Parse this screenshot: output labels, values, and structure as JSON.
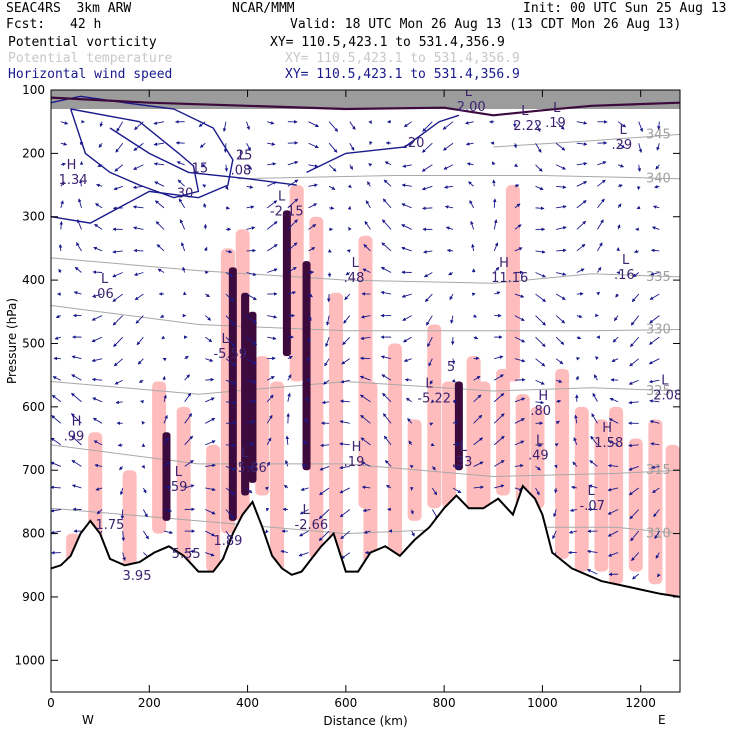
{
  "header": {
    "model": "SEAC4RS  3km ARW",
    "center": "NCAR/MMM",
    "init": "Init: 00 UTC Sun 25 Aug 13",
    "fcst_label": "Fcst:",
    "fcst_value": "42 h",
    "valid": "Valid: 18 UTC Mon 26 Aug 13 (13 CDT Mon 26 Aug 13)",
    "fields": [
      {
        "name": "Potential vorticity",
        "xy": "XY= 110.5,423.1 to 531.4,356.9",
        "color": "#000000"
      },
      {
        "name": "Potential temperature",
        "xy": "XY= 110.5,423.1 to 531.4,356.9",
        "color": "#c8c8c8"
      },
      {
        "name": "Horizontal wind speed",
        "xy": "XY= 110.5,423.1 to 531.4,356.9",
        "color": "#1a1a8c"
      }
    ]
  },
  "colors": {
    "pv_fill": "#ffbcbc",
    "pv_high": "#3c0a3c",
    "wind": "#1a1a8c",
    "theta": "#a8a8a8",
    "terrain": "#000000",
    "label_purple": "#3c2370"
  },
  "chart_data": {
    "type": "cross-section",
    "xlabel": "Distance (km)",
    "ylabel": "Pressure (hPa)",
    "x_ticks": [
      0,
      200,
      400,
      600,
      800,
      1000,
      1200
    ],
    "x_tick_labels": [
      "0",
      "200",
      "400",
      "600",
      "800",
      "1000",
      "1200"
    ],
    "xlim": [
      0,
      1280
    ],
    "y_ticks": [
      100,
      200,
      300,
      400,
      500,
      600,
      700,
      800,
      900,
      1000
    ],
    "y_tick_labels": [
      "100",
      "200",
      "300",
      "400",
      "500",
      "600",
      "700",
      "800",
      "900",
      "1000"
    ],
    "ylim": [
      1050,
      100
    ],
    "left_end": "W",
    "right_end": "E",
    "terrain": [
      [
        0,
        855
      ],
      [
        20,
        850
      ],
      [
        40,
        835
      ],
      [
        60,
        800
      ],
      [
        80,
        780
      ],
      [
        100,
        800
      ],
      [
        120,
        840
      ],
      [
        150,
        850
      ],
      [
        180,
        845
      ],
      [
        210,
        830
      ],
      [
        240,
        820
      ],
      [
        270,
        835
      ],
      [
        300,
        860
      ],
      [
        330,
        860
      ],
      [
        350,
        840
      ],
      [
        370,
        800
      ],
      [
        390,
        770
      ],
      [
        410,
        750
      ],
      [
        430,
        790
      ],
      [
        450,
        835
      ],
      [
        470,
        855
      ],
      [
        490,
        865
      ],
      [
        510,
        860
      ],
      [
        530,
        840
      ],
      [
        550,
        820
      ],
      [
        575,
        800
      ],
      [
        600,
        860
      ],
      [
        625,
        860
      ],
      [
        650,
        830
      ],
      [
        680,
        820
      ],
      [
        710,
        835
      ],
      [
        740,
        810
      ],
      [
        770,
        790
      ],
      [
        800,
        760
      ],
      [
        825,
        740
      ],
      [
        850,
        760
      ],
      [
        880,
        760
      ],
      [
        910,
        745
      ],
      [
        940,
        770
      ],
      [
        960,
        725
      ],
      [
        985,
        745
      ],
      [
        1000,
        770
      ],
      [
        1020,
        830
      ],
      [
        1060,
        855
      ],
      [
        1120,
        875
      ],
      [
        1180,
        885
      ],
      [
        1240,
        895
      ],
      [
        1280,
        900
      ]
    ],
    "theta_isentropes": [
      {
        "label": "340",
        "points": [
          [
            380,
            240
          ],
          [
            700,
            235
          ],
          [
            1000,
            235
          ],
          [
            1280,
            240
          ]
        ]
      },
      {
        "label": "335",
        "points": [
          [
            0,
            365
          ],
          [
            300,
            385
          ],
          [
            600,
            400
          ],
          [
            900,
            405
          ],
          [
            1100,
            390
          ],
          [
            1280,
            395
          ]
        ]
      },
      {
        "label": "330",
        "points": [
          [
            0,
            440
          ],
          [
            300,
            470
          ],
          [
            600,
            480
          ],
          [
            850,
            480
          ],
          [
            1100,
            480
          ],
          [
            1280,
            478
          ]
        ]
      },
      {
        "label": "325",
        "points": [
          [
            0,
            560
          ],
          [
            300,
            580
          ],
          [
            600,
            560
          ],
          [
            900,
            575
          ],
          [
            1100,
            570
          ],
          [
            1280,
            575
          ]
        ]
      },
      {
        "label": "315",
        "points": [
          [
            0,
            660
          ],
          [
            300,
            690
          ],
          [
            600,
            690
          ],
          [
            900,
            710
          ],
          [
            1150,
            705
          ],
          [
            1280,
            700
          ]
        ]
      },
      {
        "label": "310",
        "points": [
          [
            0,
            760
          ],
          [
            300,
            780
          ],
          [
            600,
            800
          ],
          [
            900,
            790
          ],
          [
            1150,
            790
          ],
          [
            1280,
            800
          ]
        ]
      },
      {
        "label": "345",
        "points": [
          [
            900,
            190
          ],
          [
            1100,
            180
          ],
          [
            1280,
            170
          ]
        ]
      }
    ],
    "wind_contours": [
      {
        "label": "30",
        "points": [
          [
            40,
            130
          ],
          [
            180,
            150
          ],
          [
            260,
            200
          ],
          [
            290,
            220
          ],
          [
            300,
            260
          ],
          [
            250,
            270
          ],
          [
            180,
            250
          ],
          [
            120,
            230
          ],
          [
            70,
            200
          ],
          [
            40,
            130
          ]
        ]
      },
      {
        "label": "25",
        "points": [
          [
            0,
            300
          ],
          [
            80,
            310
          ],
          [
            200,
            260
          ],
          [
            300,
            270
          ],
          [
            360,
            250
          ],
          [
            370,
            210
          ],
          [
            330,
            160
          ],
          [
            250,
            130
          ],
          [
            150,
            120
          ],
          [
            60,
            110
          ],
          [
            0,
            120
          ]
        ]
      },
      {
        "label": "20",
        "points": [
          [
            520,
            230
          ],
          [
            600,
            200
          ],
          [
            720,
            190
          ],
          [
            790,
            150
          ],
          [
            830,
            140
          ]
        ]
      },
      {
        "label": "15",
        "points": [
          [
            120,
            160
          ],
          [
            200,
            200
          ],
          [
            280,
            230
          ],
          [
            400,
            240
          ],
          [
            500,
            250
          ]
        ]
      }
    ],
    "extrema_labels": [
      {
        "kind": "L",
        "value": "2.00",
        "x": 850,
        "p": 130
      },
      {
        "kind": "L",
        "value": "2.22",
        "x": 965,
        "p": 160
      },
      {
        "kind": "L",
        "value": ".19",
        "x": 1030,
        "p": 155
      },
      {
        "kind": "L",
        "value": ".29",
        "x": 1165,
        "p": 190
      },
      {
        "kind": "H",
        "value": "1.34",
        "x": 40,
        "p": 245
      },
      {
        "kind": "L",
        "value": ".08",
        "x": 390,
        "p": 230
      },
      {
        "kind": "L",
        "value": "-2.15",
        "x": 470,
        "p": 295
      },
      {
        "kind": "L",
        "value": ".48",
        "x": 620,
        "p": 400
      },
      {
        "kind": "L",
        "value": ".06",
        "x": 110,
        "p": 425
      },
      {
        "kind": "H",
        "value": "11.16",
        "x": 920,
        "p": 400
      },
      {
        "kind": "L",
        "value": ".16",
        "x": 1170,
        "p": 395
      },
      {
        "kind": "L",
        "value": "-5.59",
        "x": 355,
        "p": 520
      },
      {
        "kind": "L",
        "value": "-5.22",
        "x": 770,
        "p": 590
      },
      {
        "kind": "H",
        "value": ".80",
        "x": 1000,
        "p": 610
      },
      {
        "kind": "H",
        "value": "1.58",
        "x": 1130,
        "p": 660
      },
      {
        "kind": "L",
        "value": "2.08",
        "x": 1250,
        "p": 585
      },
      {
        "kind": "H",
        "value": ".99",
        "x": 50,
        "p": 650
      },
      {
        "kind": "L",
        "value": ".59",
        "x": 260,
        "p": 730
      },
      {
        "kind": "L",
        "value": ".49",
        "x": 995,
        "p": 680
      },
      {
        "kind": "H",
        "value": ".19",
        "x": 620,
        "p": 690
      },
      {
        "kind": "L",
        "value": ".33",
        "x": 840,
        "p": 690
      },
      {
        "kind": "L",
        "value": "-5.86",
        "x": 395,
        "p": 700
      },
      {
        "kind": "L",
        "value": "-.07",
        "x": 1100,
        "p": 760
      },
      {
        "kind": "L",
        "value": "-2.66",
        "x": 520,
        "p": 790
      },
      {
        "kind": "",
        "value": "1.75",
        "x": 115,
        "p": 790
      },
      {
        "kind": "",
        "value": "5.55",
        "x": 270,
        "p": 835
      },
      {
        "kind": "",
        "value": "3.95",
        "x": 170,
        "p": 870
      },
      {
        "kind": "",
        "value": "1.89",
        "x": 355,
        "p": 815
      },
      {
        "kind": "",
        "value": "5",
        "x": 830,
        "p": 540
      }
    ],
    "pv_bands": [
      [
        45,
        800,
        860
      ],
      [
        90,
        640,
        860
      ],
      [
        160,
        700,
        860
      ],
      [
        220,
        560,
        800
      ],
      [
        270,
        600,
        860
      ],
      [
        330,
        660,
        860
      ],
      [
        360,
        350,
        800
      ],
      [
        390,
        320,
        780
      ],
      [
        430,
        520,
        740
      ],
      [
        460,
        560,
        860
      ],
      [
        500,
        250,
        560
      ],
      [
        540,
        300,
        840
      ],
      [
        580,
        420,
        860
      ],
      [
        640,
        330,
        760
      ],
      [
        650,
        560,
        860
      ],
      [
        700,
        500,
        840
      ],
      [
        740,
        620,
        780
      ],
      [
        780,
        470,
        760
      ],
      [
        810,
        560,
        760
      ],
      [
        860,
        520,
        760
      ],
      [
        880,
        560,
        760
      ],
      [
        920,
        540,
        740
      ],
      [
        940,
        250,
        560
      ],
      [
        960,
        580,
        760
      ],
      [
        990,
        600,
        760
      ],
      [
        1040,
        540,
        840
      ],
      [
        1080,
        600,
        860
      ],
      [
        1120,
        620,
        860
      ],
      [
        1150,
        600,
        880
      ],
      [
        1190,
        650,
        860
      ],
      [
        1230,
        620,
        880
      ],
      [
        1265,
        660,
        900
      ]
    ],
    "pv_high_bands": [
      [
        370,
        380,
        780
      ],
      [
        395,
        420,
        740
      ],
      [
        410,
        450,
        720
      ],
      [
        480,
        290,
        520
      ],
      [
        520,
        370,
        700
      ],
      [
        235,
        640,
        780
      ],
      [
        830,
        560,
        700
      ]
    ],
    "grid": false
  }
}
